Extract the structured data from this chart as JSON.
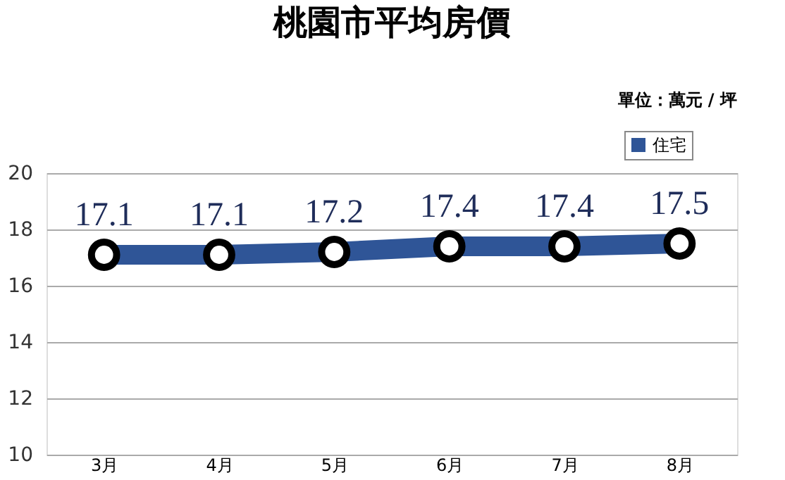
{
  "chart_data": {
    "type": "line",
    "title": "桃園市平均房價",
    "annotations": [
      "單位：萬元 / 坪"
    ],
    "categories": [
      "3月",
      "4月",
      "5月",
      "6月",
      "7月",
      "8月"
    ],
    "series": [
      {
        "name": "住宅",
        "color": "#2f5597",
        "values": [
          17.1,
          17.1,
          17.2,
          17.4,
          17.4,
          17.5
        ]
      }
    ],
    "ylim": [
      10,
      20
    ],
    "yticks": [
      10,
      12,
      14,
      16,
      18,
      20
    ],
    "grid": "y",
    "legend": "top right",
    "marker": "circle",
    "line_style": "solid",
    "data_labels": true
  }
}
